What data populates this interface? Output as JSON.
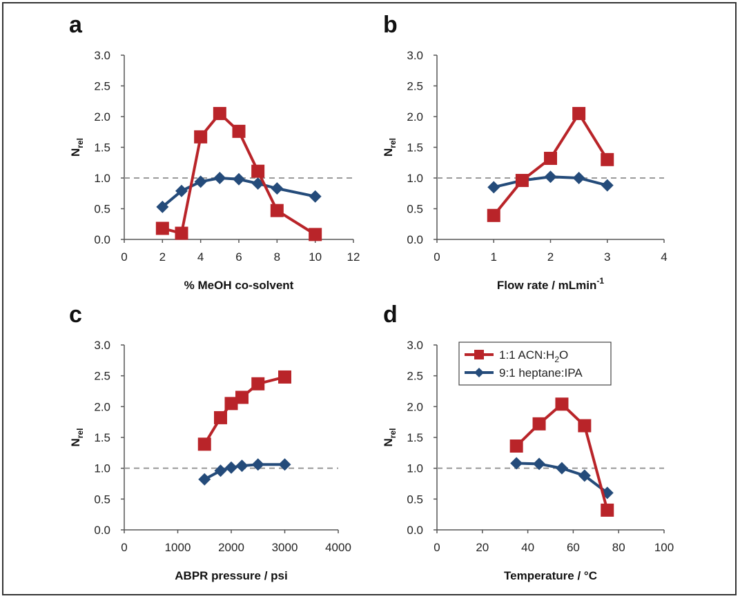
{
  "figure": {
    "ylabel_main": "N",
    "ylabel_sub": "rel"
  },
  "colors": {
    "acn": "#b92429",
    "hep": "#244b7a",
    "reference": "#999999"
  },
  "legend": {
    "acn": {
      "pre": "1:1 ACN:H",
      "sub": "2",
      "post": "O"
    },
    "hep": {
      "text": "9:1 heptane:IPA"
    }
  },
  "chart_data": [
    {
      "type": "line",
      "panel": "a",
      "xlabel": "% MeOH co-solvent",
      "xlim": [
        0,
        12
      ],
      "xticks": [
        "0",
        "2",
        "4",
        "6",
        "8",
        "10",
        "12"
      ],
      "ylim": [
        0,
        3
      ],
      "yticks": [
        "0.0",
        "0.5",
        "1.0",
        "1.5",
        "2.0",
        "2.5",
        "3.0"
      ],
      "reference_y": 1.0,
      "series": [
        {
          "name": "1:1 ACN:H2O",
          "marker": "square",
          "x": [
            2,
            3,
            4,
            5,
            6,
            7,
            8,
            10
          ],
          "y": [
            0.18,
            0.1,
            1.67,
            2.05,
            1.76,
            1.11,
            0.47,
            0.08
          ]
        },
        {
          "name": "9:1 heptane:IPA",
          "marker": "diamond",
          "x": [
            2,
            3,
            4,
            5,
            6,
            7,
            8,
            10
          ],
          "y": [
            0.53,
            0.79,
            0.94,
            1.0,
            0.98,
            0.91,
            0.83,
            0.7
          ]
        }
      ]
    },
    {
      "type": "line",
      "panel": "b",
      "xlabel": "Flow rate / mLmin",
      "xlabel_sup": "-1",
      "xlim": [
        0,
        4
      ],
      "xticks": [
        "0",
        "1",
        "2",
        "3",
        "4"
      ],
      "ylim": [
        0,
        3
      ],
      "yticks": [
        "0.0",
        "0.5",
        "1.0",
        "1.5",
        "2.0",
        "2.5",
        "3.0"
      ],
      "reference_y": 1.0,
      "series": [
        {
          "name": "1:1 ACN:H2O",
          "marker": "square",
          "x": [
            1,
            1.5,
            2,
            2.5,
            3
          ],
          "y": [
            0.39,
            0.96,
            1.32,
            2.05,
            1.3
          ]
        },
        {
          "name": "9:1 heptane:IPA",
          "marker": "diamond",
          "x": [
            1,
            1.5,
            2,
            2.5,
            3
          ],
          "y": [
            0.85,
            0.96,
            1.02,
            1.0,
            0.88
          ]
        }
      ]
    },
    {
      "type": "line",
      "panel": "c",
      "xlabel": "ABPR pressure / psi",
      "xlim": [
        0,
        4000
      ],
      "xticks": [
        "0",
        "1000",
        "2000",
        "3000",
        "4000"
      ],
      "ylim": [
        0,
        3
      ],
      "yticks": [
        "0.0",
        "0.5",
        "1.0",
        "1.5",
        "2.0",
        "2.5",
        "3.0"
      ],
      "reference_y": 1.0,
      "series": [
        {
          "name": "1:1 ACN:H2O",
          "marker": "square",
          "x": [
            1500,
            1800,
            2000,
            2200,
            2500,
            3000
          ],
          "y": [
            1.39,
            1.82,
            2.05,
            2.15,
            2.37,
            2.48
          ]
        },
        {
          "name": "9:1 heptane:IPA",
          "marker": "diamond",
          "x": [
            1500,
            1800,
            2000,
            2200,
            2500,
            3000
          ],
          "y": [
            0.82,
            0.96,
            1.01,
            1.04,
            1.06,
            1.06
          ]
        }
      ]
    },
    {
      "type": "line",
      "panel": "d",
      "xlabel": "Temperature / °C",
      "xlim": [
        0,
        100
      ],
      "xticks": [
        "0",
        "20",
        "40",
        "60",
        "80",
        "100"
      ],
      "ylim": [
        0,
        3
      ],
      "yticks": [
        "0.0",
        "0.5",
        "1.0",
        "1.5",
        "2.0",
        "2.5",
        "3.0"
      ],
      "reference_y": 1.0,
      "legend_position": "top-center",
      "series": [
        {
          "name": "1:1 ACN:H2O",
          "marker": "square",
          "x": [
            35,
            45,
            55,
            65,
            75
          ],
          "y": [
            1.36,
            1.72,
            2.04,
            1.69,
            0.32
          ]
        },
        {
          "name": "9:1 heptane:IPA",
          "marker": "diamond",
          "x": [
            35,
            45,
            55,
            65,
            75
          ],
          "y": [
            1.08,
            1.07,
            1.0,
            0.88,
            0.6
          ]
        }
      ]
    }
  ]
}
